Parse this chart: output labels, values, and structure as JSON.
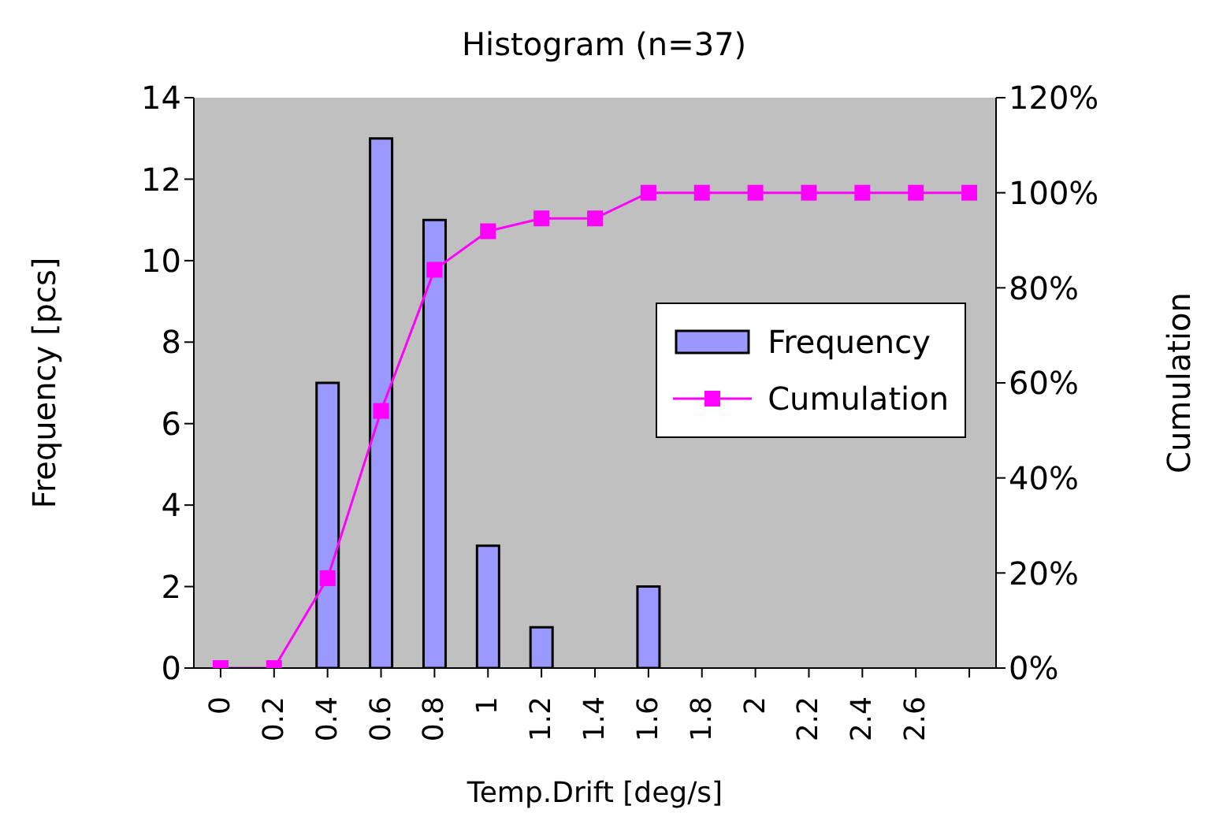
{
  "chart_data": {
    "type": "bar",
    "title": "Histogram (n=37)",
    "xlabel": "Temp.Drift [deg/s]",
    "ylabel": "Frequency [pcs]",
    "y2label": "Cumulation",
    "categories": [
      "0",
      "0.2",
      "0.4",
      "0.6",
      "0.8",
      "1",
      "1.2",
      "1.4",
      "1.6",
      "1.8",
      "2",
      "2.2",
      "2.4",
      "2.6",
      null
    ],
    "series": [
      {
        "name": "Frequency",
        "color": "#9999ff",
        "values": [
          0,
          0,
          7,
          13,
          11,
          3,
          1,
          0,
          2,
          0,
          0,
          0,
          0,
          0,
          0
        ]
      },
      {
        "name": "Cumulation",
        "type": "line",
        "axis": "y2",
        "color": "#ff00ff",
        "marker": "square",
        "values": [
          0,
          0,
          18.9,
          54.1,
          83.8,
          91.9,
          94.6,
          94.6,
          100,
          100,
          100,
          100,
          100,
          100,
          100
        ]
      }
    ],
    "ylim": [
      0,
      14
    ],
    "yticks": [
      0,
      2,
      4,
      6,
      8,
      10,
      12,
      14
    ],
    "y2lim": [
      0,
      120
    ],
    "y2ticks": [
      {
        "value": 0,
        "label": "0%"
      },
      {
        "value": 20,
        "label": "20%"
      },
      {
        "value": 40,
        "label": "40%"
      },
      {
        "value": 60,
        "label": "60%"
      },
      {
        "value": 80,
        "label": "80%"
      },
      {
        "value": 100,
        "label": "100%"
      },
      {
        "value": 120,
        "label": "120%"
      }
    ],
    "grid": false,
    "legend": "right"
  }
}
